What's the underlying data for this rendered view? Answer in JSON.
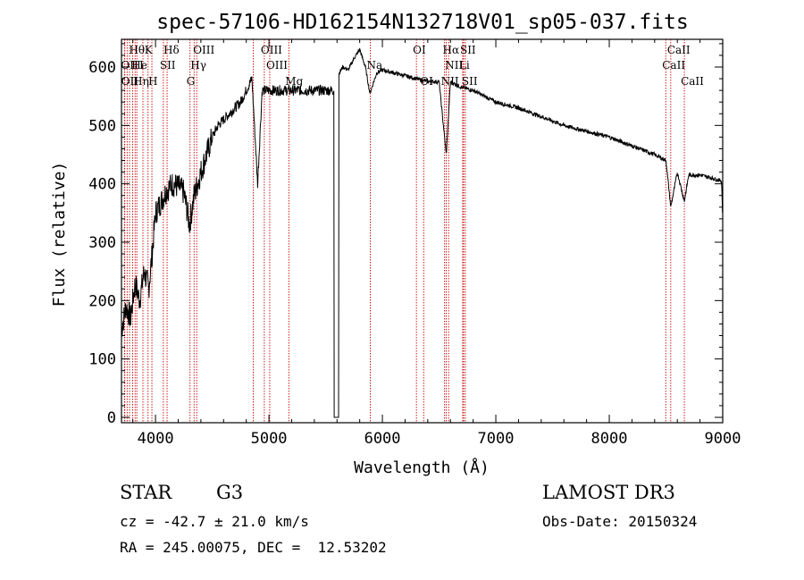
{
  "chart_data": {
    "type": "line",
    "title": "spec-57106-HD162154N132718V01_sp05-037.fits",
    "xlabel": "Wavelength (Å)",
    "ylabel": "Flux (relative)",
    "xlim": [
      3700,
      9000
    ],
    "ylim": [
      0,
      650
    ],
    "xticks": [
      4000,
      5000,
      6000,
      7000,
      8000,
      9000
    ],
    "yticks": [
      0,
      100,
      200,
      300,
      400,
      500,
      600
    ],
    "xtick_labels": [
      "4000",
      "5000",
      "6000",
      "7000",
      "8000",
      "9000"
    ],
    "ytick_labels": [
      "0",
      "100",
      "200",
      "300",
      "400",
      "500",
      "600"
    ],
    "gap": [
      5575,
      5615
    ],
    "series": [
      {
        "name": "spectrum",
        "x": [
          3700,
          3740,
          3780,
          3820,
          3860,
          3900,
          3940,
          3970,
          4000,
          4050,
          4100,
          4150,
          4200,
          4250,
          4300,
          4340,
          4400,
          4450,
          4500,
          4550,
          4600,
          4650,
          4700,
          4750,
          4800,
          4850,
          4900,
          4940,
          4980,
          5000,
          5050,
          5100,
          5150,
          5200,
          5250,
          5300,
          5350,
          5400,
          5450,
          5500,
          5550,
          5570,
          5620,
          5650,
          5700,
          5750,
          5800,
          5850,
          5890,
          5950,
          6000,
          6100,
          6200,
          6300,
          6400,
          6500,
          6563,
          6600,
          6700,
          6800,
          6900,
          7000,
          7200,
          7400,
          7600,
          7800,
          8000,
          8200,
          8400,
          8500,
          8542,
          8600,
          8662,
          8700,
          8800,
          8900,
          8990,
          9000
        ],
        "y": [
          150,
          190,
          170,
          230,
          200,
          250,
          220,
          280,
          350,
          370,
          390,
          400,
          395,
          385,
          330,
          380,
          420,
          450,
          480,
          500,
          510,
          520,
          530,
          540,
          560,
          580,
          400,
          560,
          560,
          560,
          560,
          560,
          560,
          560,
          560,
          560,
          560,
          560,
          560,
          560,
          560,
          560,
          590,
          600,
          595,
          615,
          630,
          600,
          555,
          590,
          595,
          590,
          585,
          580,
          575,
          575,
          450,
          575,
          565,
          560,
          550,
          540,
          530,
          515,
          500,
          490,
          480,
          465,
          450,
          440,
          360,
          420,
          370,
          415,
          415,
          410,
          405,
          340
        ]
      }
    ],
    "line_markers": {
      "row1": [
        {
          "label": "Hθ",
          "x": 3798
        },
        {
          "label": "K",
          "x": 3934
        },
        {
          "label": "Hδ",
          "x": 4102
        },
        {
          "label": "OIII",
          "x": 4363
        },
        {
          "label": "OIII",
          "x": 4959
        },
        {
          "label": "OI",
          "x": 6300
        },
        {
          "label": "Hα",
          "x": 6563
        },
        {
          "label": "SII",
          "x": 6716
        },
        {
          "label": "CaII",
          "x": 8542
        }
      ],
      "row2": [
        {
          "label": "OII",
          "x": 3727
        },
        {
          "label": "He",
          "x": 3820
        },
        {
          "label": "I",
          "x": 3889
        },
        {
          "label": "SII",
          "x": 4069
        },
        {
          "label": "Hγ",
          "x": 4340
        },
        {
          "label": "OIII",
          "x": 5007
        },
        {
          "label": "Na",
          "x": 5893
        },
        {
          "label": "NII",
          "x": 6584
        },
        {
          "label": "Li",
          "x": 6708
        },
        {
          "label": "CaII",
          "x": 8498
        }
      ],
      "row3": [
        {
          "label": "OII",
          "x": 3729
        },
        {
          "label": "Hη",
          "x": 3835
        },
        {
          "label": "H",
          "x": 3968
        },
        {
          "label": "G",
          "x": 4304
        },
        {
          "label": "Mg",
          "x": 5175
        },
        {
          "label": "OI",
          "x": 6364
        },
        {
          "label": "NII",
          "x": 6548
        },
        {
          "label": "SII",
          "x": 6731
        },
        {
          "label": "CaII",
          "x": 8662
        }
      ],
      "other_lines": [
        3750,
        3771,
        3889,
        4861,
        4959
      ]
    },
    "colors": {
      "spectrum": "#000000",
      "markers": "#cc0000"
    }
  },
  "info": {
    "object_class": "STAR",
    "subclass": "G3",
    "survey": "LAMOST DR3",
    "redshift": "cz = -42.7 ± 21.0 km/s",
    "obs_date": "Obs-Date: 20150324",
    "coords": "RA = 245.00075, DEC =  12.53202"
  }
}
